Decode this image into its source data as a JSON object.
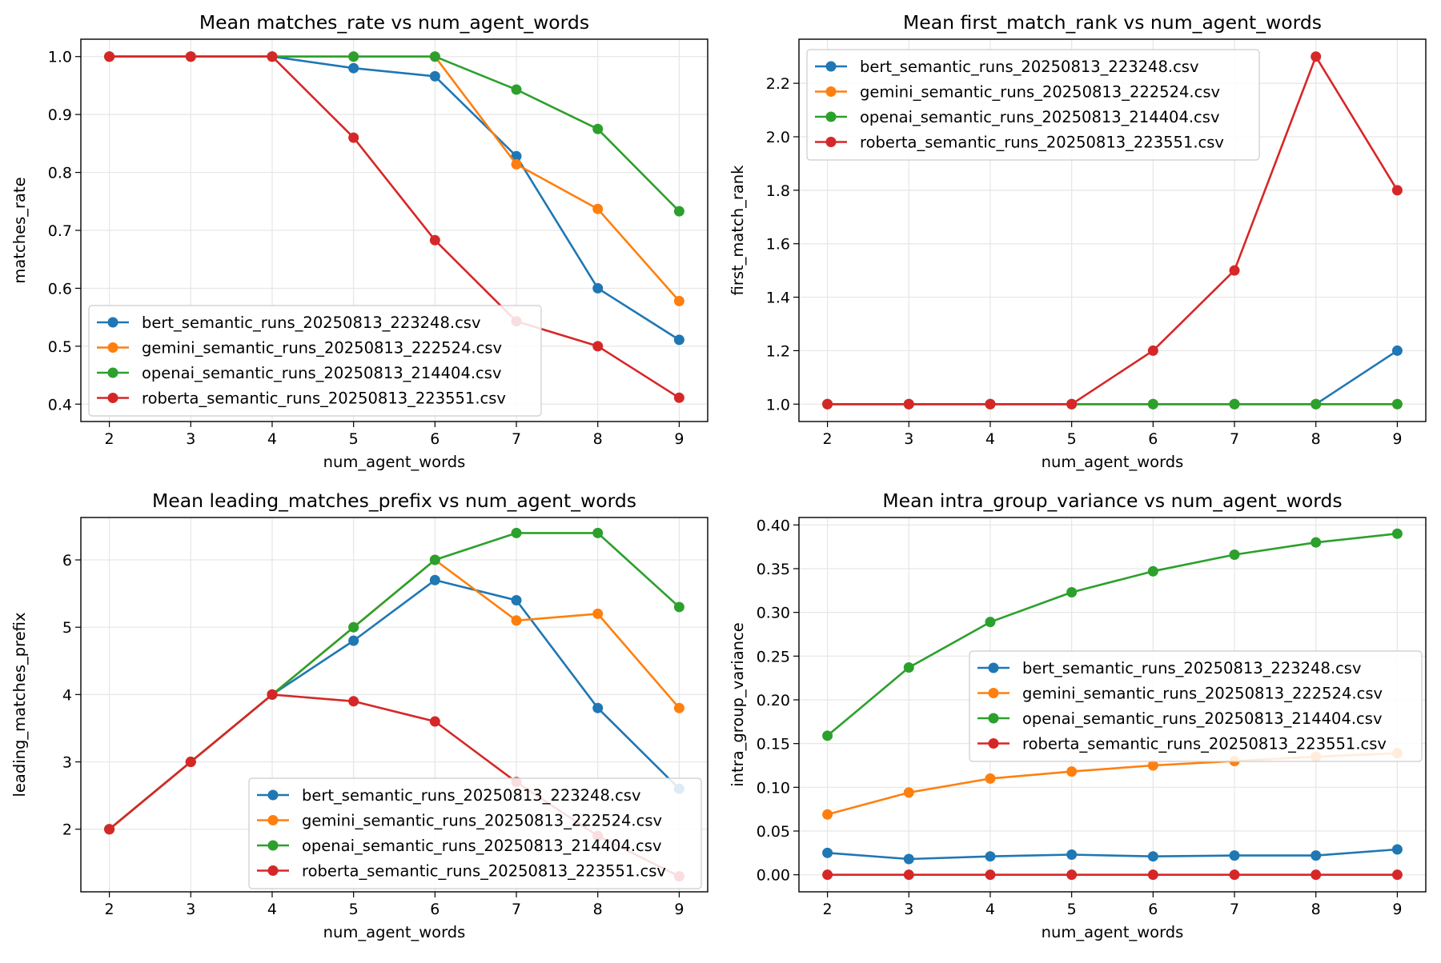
{
  "colors": {
    "bert": "#1f77b4",
    "gemini": "#ff7f0e",
    "openai": "#2ca02c",
    "roberta": "#d62728"
  },
  "chart_data": [
    {
      "type": "line",
      "title": "Mean matches_rate vs num_agent_words",
      "xlabel": "num_agent_words",
      "ylabel": "matches_rate",
      "x": [
        2,
        3,
        4,
        5,
        6,
        7,
        8,
        9
      ],
      "xlim": [
        1.65,
        9.35
      ],
      "ylim": [
        0.37,
        1.03
      ],
      "yticks": [
        0.4,
        0.5,
        0.6,
        0.7,
        0.8,
        0.9,
        1.0
      ],
      "ytick_labels": [
        "0.4",
        "0.5",
        "0.6",
        "0.7",
        "0.8",
        "0.9",
        "1.0"
      ],
      "grid": true,
      "legend_position": "lower-left",
      "series": [
        {
          "name": "bert_semantic_runs_20250813_223248.csv",
          "color_key": "bert",
          "values": [
            1.0,
            1.0,
            1.0,
            0.98,
            0.966,
            0.828,
            0.6,
            0.511
          ]
        },
        {
          "name": "gemini_semantic_runs_20250813_222524.csv",
          "color_key": "gemini",
          "values": [
            1.0,
            1.0,
            1.0,
            1.0,
            1.0,
            0.814,
            0.737,
            0.578
          ]
        },
        {
          "name": "openai_semantic_runs_20250813_214404.csv",
          "color_key": "openai",
          "values": [
            1.0,
            1.0,
            1.0,
            1.0,
            1.0,
            0.943,
            0.875,
            0.733
          ]
        },
        {
          "name": "roberta_semantic_runs_20250813_223551.csv",
          "color_key": "roberta",
          "values": [
            1.0,
            1.0,
            1.0,
            0.86,
            0.683,
            0.543,
            0.5,
            0.411
          ]
        }
      ]
    },
    {
      "type": "line",
      "title": "Mean first_match_rank vs num_agent_words",
      "xlabel": "num_agent_words",
      "ylabel": "first_match_rank",
      "x": [
        2,
        3,
        4,
        5,
        6,
        7,
        8,
        9
      ],
      "xlim": [
        1.65,
        9.35
      ],
      "ylim": [
        0.935,
        2.365
      ],
      "yticks": [
        1.0,
        1.2,
        1.4,
        1.6,
        1.8,
        2.0,
        2.2
      ],
      "ytick_labels": [
        "1.0",
        "1.2",
        "1.4",
        "1.6",
        "1.8",
        "2.0",
        "2.2"
      ],
      "grid": true,
      "legend_position": "upper-left",
      "series": [
        {
          "name": "bert_semantic_runs_20250813_223248.csv",
          "color_key": "bert",
          "values": [
            1.0,
            1.0,
            1.0,
            1.0,
            1.0,
            1.0,
            1.0,
            1.2
          ]
        },
        {
          "name": "gemini_semantic_runs_20250813_222524.csv",
          "color_key": "gemini",
          "values": [
            1.0,
            1.0,
            1.0,
            1.0,
            1.0,
            1.0,
            1.0,
            1.0
          ]
        },
        {
          "name": "openai_semantic_runs_20250813_214404.csv",
          "color_key": "openai",
          "values": [
            1.0,
            1.0,
            1.0,
            1.0,
            1.0,
            1.0,
            1.0,
            1.0
          ]
        },
        {
          "name": "roberta_semantic_runs_20250813_223551.csv",
          "color_key": "roberta",
          "values": [
            1.0,
            1.0,
            1.0,
            1.0,
            1.2,
            1.5,
            2.3,
            1.8
          ]
        }
      ]
    },
    {
      "type": "line",
      "title": "Mean leading_matches_prefix vs num_agent_words",
      "xlabel": "num_agent_words",
      "ylabel": "leading_matches_prefix",
      "x": [
        2,
        3,
        4,
        5,
        6,
        7,
        8,
        9
      ],
      "xlim": [
        1.65,
        9.35
      ],
      "ylim": [
        1.07,
        6.63
      ],
      "yticks": [
        2,
        3,
        4,
        5,
        6
      ],
      "ytick_labels": [
        "2",
        "3",
        "4",
        "5",
        "6"
      ],
      "grid": true,
      "legend_position": "lower-right",
      "series": [
        {
          "name": "bert_semantic_runs_20250813_223248.csv",
          "color_key": "bert",
          "values": [
            2.0,
            3.0,
            4.0,
            4.8,
            5.7,
            5.4,
            3.8,
            2.6
          ]
        },
        {
          "name": "gemini_semantic_runs_20250813_222524.csv",
          "color_key": "gemini",
          "values": [
            2.0,
            3.0,
            4.0,
            5.0,
            6.0,
            5.1,
            5.2,
            3.8
          ]
        },
        {
          "name": "openai_semantic_runs_20250813_214404.csv",
          "color_key": "openai",
          "values": [
            2.0,
            3.0,
            4.0,
            5.0,
            6.0,
            6.4,
            6.4,
            5.3
          ]
        },
        {
          "name": "roberta_semantic_runs_20250813_223551.csv",
          "color_key": "roberta",
          "values": [
            2.0,
            3.0,
            4.0,
            3.9,
            3.6,
            2.7,
            1.9,
            1.3
          ]
        }
      ]
    },
    {
      "type": "line",
      "title": "Mean intra_group_variance vs num_agent_words",
      "xlabel": "num_agent_words",
      "ylabel": "intra_group_variance",
      "x": [
        2,
        3,
        4,
        5,
        6,
        7,
        8,
        9
      ],
      "xlim": [
        1.65,
        9.35
      ],
      "ylim": [
        -0.0195,
        0.4085
      ],
      "yticks": [
        0.0,
        0.05,
        0.1,
        0.15,
        0.2,
        0.25,
        0.3,
        0.35,
        0.4
      ],
      "ytick_labels": [
        "0.00",
        "0.05",
        "0.10",
        "0.15",
        "0.20",
        "0.25",
        "0.30",
        "0.35",
        "0.40"
      ],
      "grid": true,
      "legend_position": "center-right",
      "series": [
        {
          "name": "bert_semantic_runs_20250813_223248.csv",
          "color_key": "bert",
          "values": [
            0.025,
            0.018,
            0.021,
            0.023,
            0.021,
            0.022,
            0.022,
            0.029
          ]
        },
        {
          "name": "gemini_semantic_runs_20250813_222524.csv",
          "color_key": "gemini",
          "values": [
            0.069,
            0.094,
            0.11,
            0.118,
            0.125,
            0.13,
            0.135,
            0.139
          ]
        },
        {
          "name": "openai_semantic_runs_20250813_214404.csv",
          "color_key": "openai",
          "values": [
            0.159,
            0.237,
            0.289,
            0.323,
            0.347,
            0.366,
            0.38,
            0.39
          ]
        },
        {
          "name": "roberta_semantic_runs_20250813_223551.csv",
          "color_key": "roberta",
          "values": [
            0.0,
            0.0,
            0.0,
            0.0,
            0.0,
            0.0,
            0.0,
            0.0
          ]
        }
      ]
    }
  ]
}
